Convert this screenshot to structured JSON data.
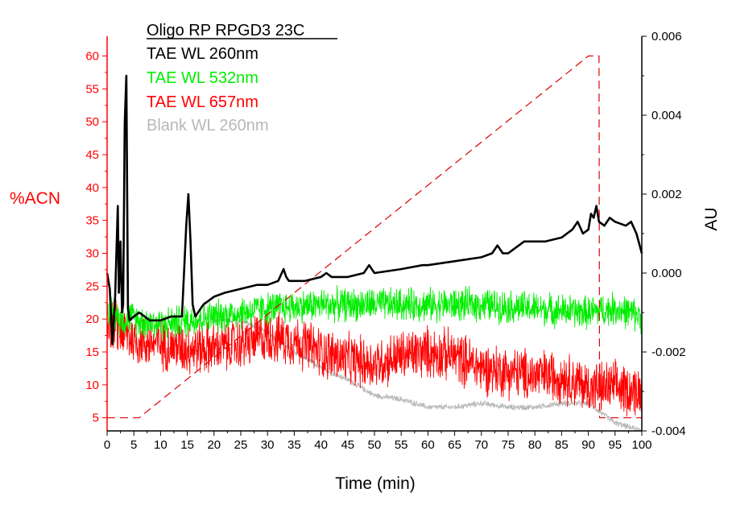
{
  "chart_data": {
    "type": "line",
    "title": "Oligo RP RPGD3 23C",
    "xlabel": "Time (min)",
    "ylabel_left": "%ACN",
    "ylabel_right": "AU",
    "xlim": [
      0,
      100
    ],
    "ylim_left": [
      3,
      63
    ],
    "ylim_right": [
      -0.004,
      0.006
    ],
    "x_ticks": [
      0,
      5,
      10,
      15,
      20,
      25,
      30,
      35,
      40,
      45,
      50,
      55,
      60,
      65,
      70,
      75,
      80,
      85,
      90,
      95,
      100
    ],
    "y_left_ticks": [
      5,
      10,
      15,
      20,
      25,
      30,
      35,
      40,
      45,
      50,
      55,
      60
    ],
    "y_right_ticks": [
      "-0.004",
      "-0.002",
      "0.000",
      "0.002",
      "0.004",
      "0.006"
    ],
    "grid": false,
    "legend_position": "top-left",
    "colors": {
      "left_axis": "#ff0000",
      "right_axis": "#000000",
      "tae_260": "#000000",
      "tae_532": "#00ee00",
      "tae_657": "#ff0000",
      "blank_260": "#b8b8b8",
      "gradient": "#dd0000"
    },
    "legend": [
      {
        "label": "TAE WL 260nm",
        "color": "#000000"
      },
      {
        "label": "TAE WL 532nm",
        "color": "#00ee00"
      },
      {
        "label": "TAE WL 657nm",
        "color": "#ff0000"
      },
      {
        "label": "Blank WL 260nm",
        "color": "#b8b8b8"
      }
    ],
    "series": [
      {
        "name": "TAE WL 260nm",
        "axis": "right",
        "style": "solid",
        "x": [
          0,
          0.5,
          1,
          1.5,
          2,
          2.2,
          2.5,
          2.8,
          3,
          3.3,
          3.6,
          3.9,
          4.2,
          5,
          6,
          7,
          8,
          9,
          10,
          12,
          14,
          14.8,
          15.2,
          15.6,
          16,
          16.5,
          18,
          20,
          22,
          25,
          28,
          30,
          32,
          33,
          33.5,
          34,
          35,
          37,
          40,
          41,
          42,
          45,
          48,
          49,
          50,
          55,
          59,
          60,
          65,
          70,
          72,
          73,
          74,
          75,
          78,
          80,
          82,
          85,
          87,
          88,
          89,
          90,
          90.5,
          91,
          91.5,
          92,
          93,
          94,
          95,
          97,
          98,
          99,
          100
        ],
        "y": [
          0.0,
          -0.0004,
          -0.0018,
          -0.0006,
          0.0017,
          -0.0005,
          0.0008,
          -0.001,
          -0.0008,
          0.0038,
          0.005,
          -0.0009,
          -0.0012,
          -0.0011,
          -0.001,
          -0.0011,
          -0.0012,
          -0.0012,
          -0.0012,
          -0.0011,
          -0.0011,
          0.0012,
          0.002,
          0.0008,
          -0.0008,
          -0.0011,
          -0.0008,
          -0.0006,
          -0.0005,
          -0.0004,
          -0.0003,
          -0.0003,
          -0.0002,
          0.0001,
          -0.0001,
          -0.0002,
          -0.0002,
          -0.0002,
          -0.0001,
          0.0,
          -0.0001,
          -0.0001,
          0.0,
          0.0002,
          0.0,
          0.0001,
          0.0002,
          0.0002,
          0.0003,
          0.0004,
          0.0005,
          0.0007,
          0.0005,
          0.0005,
          0.0008,
          0.0008,
          0.0008,
          0.0009,
          0.0011,
          0.0013,
          0.001,
          0.0011,
          0.0015,
          0.0014,
          0.0017,
          0.0013,
          0.0012,
          0.0014,
          0.0013,
          0.0012,
          0.0013,
          0.001,
          0.0005
        ]
      },
      {
        "name": "TAE WL 532nm",
        "axis": "right",
        "style": "noisy",
        "noise": 0.00035,
        "x": [
          0,
          1,
          2,
          3,
          4,
          6,
          10,
          15,
          20,
          25,
          30,
          40,
          50,
          60,
          70,
          80,
          90,
          95,
          100
        ],
        "y": [
          -0.0008,
          -0.001,
          -0.0011,
          -0.0012,
          -0.0011,
          -0.0012,
          -0.0013,
          -0.0012,
          -0.0011,
          -0.001,
          -0.0009,
          -0.0008,
          -0.0008,
          -0.0008,
          -0.0008,
          -0.0009,
          -0.001,
          -0.0009,
          -0.0011
        ]
      },
      {
        "name": "TAE WL 657nm",
        "axis": "right",
        "style": "noisy",
        "noise": 0.00055,
        "x": [
          0,
          2,
          5,
          10,
          15,
          20,
          25,
          30,
          35,
          40,
          45,
          50,
          55,
          60,
          65,
          70,
          75,
          80,
          85,
          90,
          95,
          100
        ],
        "y": [
          -0.0012,
          -0.0014,
          -0.0017,
          -0.0018,
          -0.0019,
          -0.0019,
          -0.0018,
          -0.0016,
          -0.0017,
          -0.002,
          -0.0022,
          -0.0023,
          -0.0021,
          -0.002,
          -0.0021,
          -0.0024,
          -0.0025,
          -0.0026,
          -0.0026,
          -0.0029,
          -0.0029,
          -0.003
        ]
      },
      {
        "name": "Blank WL 260nm",
        "axis": "right",
        "style": "noisy",
        "noise": 6e-05,
        "x": [
          20,
          25,
          30,
          35,
          40,
          45,
          50,
          55,
          60,
          65,
          70,
          75,
          80,
          85,
          90,
          95,
          100
        ],
        "y": [
          -0.0012,
          -0.0012,
          -0.0015,
          -0.002,
          -0.0024,
          -0.0027,
          -0.0031,
          -0.0032,
          -0.0034,
          -0.0034,
          -0.0033,
          -0.0034,
          -0.0034,
          -0.0033,
          -0.0033,
          -0.0038,
          -0.004
        ]
      },
      {
        "name": "%ACN",
        "axis": "left",
        "style": "dashed",
        "x": [
          0,
          6,
          90,
          92,
          92.1,
          100
        ],
        "y": [
          5,
          5,
          60,
          60,
          5,
          5
        ]
      }
    ]
  }
}
